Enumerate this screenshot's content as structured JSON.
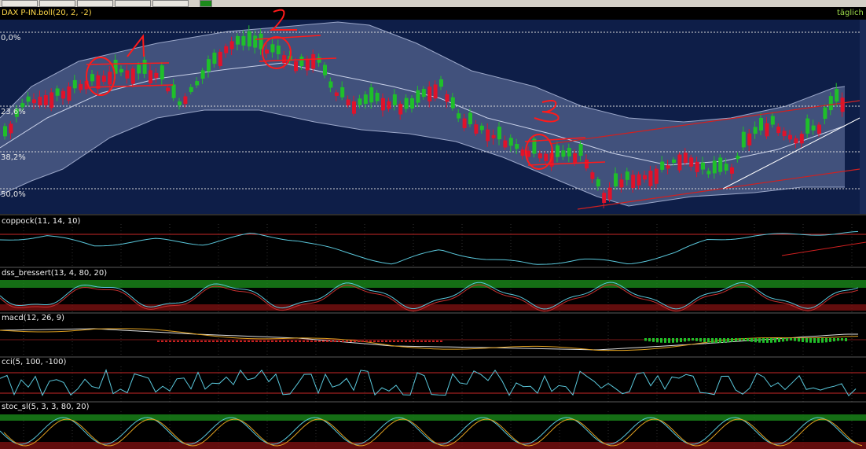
{
  "header": {
    "symbol": "DAX P-IN.",
    "indicator": "boll(20, 2, -2)",
    "timeframe": "täglich"
  },
  "fib_levels": [
    "0,0%",
    "23,6%",
    "38,2%",
    "50,0%"
  ],
  "panels": [
    {
      "id": "coppock",
      "label": "coppock(11, 14, 10)"
    },
    {
      "id": "dss",
      "label": "dss_bressert(13, 4, 80, 20)"
    },
    {
      "id": "macd",
      "label": "macd(12, 26, 9)"
    },
    {
      "id": "cci",
      "label": "cci(5, 100, -100)"
    },
    {
      "id": "stoc",
      "label": "stoc_sl(5, 3, 3, 80, 20)"
    }
  ],
  "annotations": [
    "1",
    "2",
    "3"
  ],
  "colors": {
    "up": "#1fbf2a",
    "down": "#e0122a",
    "band_fill": "#4a5a86",
    "plot_bg": "#0e1e48",
    "annotation": "#ff1a1a",
    "coppock_line": "#5ac8dc",
    "level_red": "#c82828",
    "zone_green": "#1a8a1a"
  },
  "chart_data": {
    "type": "candlestick",
    "title": "DAX P-IN.",
    "series": [
      {
        "name": "boll(20, 2, -2)"
      }
    ],
    "ylabels": [
      "0,0%",
      "23,6%",
      "38,2%",
      "50,0%"
    ]
  }
}
